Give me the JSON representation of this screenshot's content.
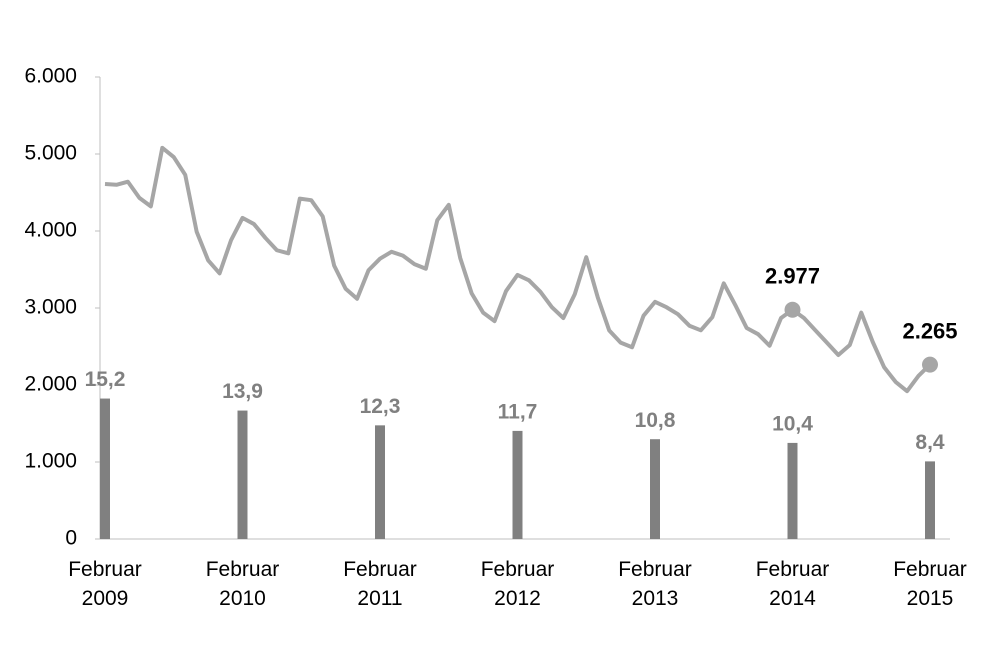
{
  "chart_data": {
    "type": "line",
    "categories": [
      "Februar 2009",
      null,
      null,
      null,
      null,
      null,
      null,
      null,
      null,
      null,
      null,
      null,
      "Februar 2010",
      null,
      null,
      null,
      null,
      null,
      null,
      null,
      null,
      null,
      null,
      null,
      "Februar 2011",
      null,
      null,
      null,
      null,
      null,
      null,
      null,
      null,
      null,
      null,
      null,
      "Februar 2012",
      null,
      null,
      null,
      null,
      null,
      null,
      null,
      null,
      null,
      null,
      null,
      "Februar 2013",
      null,
      null,
      null,
      null,
      null,
      null,
      null,
      null,
      null,
      null,
      null,
      "Februar 2014",
      null,
      null,
      null,
      null,
      null,
      null,
      null,
      null,
      null,
      null,
      null,
      "Februar 2015"
    ],
    "series": [
      {
        "type": "bar",
        "color": "#808080",
        "axis": "y2",
        "values": [
          15.2,
          null,
          null,
          null,
          null,
          null,
          null,
          null,
          null,
          null,
          null,
          null,
          13.9,
          null,
          null,
          null,
          null,
          null,
          null,
          null,
          null,
          null,
          null,
          null,
          12.3,
          null,
          null,
          null,
          null,
          null,
          null,
          null,
          null,
          null,
          null,
          null,
          11.7,
          null,
          null,
          null,
          null,
          null,
          null,
          null,
          null,
          null,
          null,
          null,
          10.8,
          null,
          null,
          null,
          null,
          null,
          null,
          null,
          null,
          null,
          null,
          null,
          10.4,
          null,
          null,
          null,
          null,
          null,
          null,
          null,
          null,
          null,
          null,
          null,
          8.4
        ],
        "value_labels": [
          "15,2",
          null,
          null,
          null,
          null,
          null,
          null,
          null,
          null,
          null,
          null,
          null,
          "13,9",
          null,
          null,
          null,
          null,
          null,
          null,
          null,
          null,
          null,
          null,
          null,
          "12,3",
          null,
          null,
          null,
          null,
          null,
          null,
          null,
          null,
          null,
          null,
          null,
          "11,7",
          null,
          null,
          null,
          null,
          null,
          null,
          null,
          null,
          null,
          null,
          null,
          "10,8",
          null,
          null,
          null,
          null,
          null,
          null,
          null,
          null,
          null,
          null,
          null,
          "10,4",
          null,
          null,
          null,
          null,
          null,
          null,
          null,
          null,
          null,
          null,
          null,
          "8,4"
        ]
      },
      {
        "type": "line",
        "color": "#a6a6a6",
        "values": [
          4610,
          4600,
          4640,
          4430,
          4320,
          5080,
          4960,
          4730,
          3990,
          3620,
          3450,
          3880,
          4170,
          4090,
          3910,
          3750,
          3710,
          4420,
          4400,
          4190,
          3550,
          3250,
          3120,
          3490,
          3640,
          3730,
          3680,
          3570,
          3510,
          4140,
          4340,
          3650,
          3190,
          2940,
          2830,
          3220,
          3430,
          3360,
          3210,
          3010,
          2870,
          3180,
          3660,
          3140,
          2710,
          2550,
          2490,
          2900,
          3080,
          3010,
          2920,
          2770,
          2710,
          2880,
          3320,
          3040,
          2740,
          2660,
          2510,
          2870,
          2977,
          2870,
          2710,
          2550,
          2390,
          2520,
          2940,
          2560,
          2230,
          2040,
          1920,
          2120,
          2265
        ],
        "value_labels": [
          null,
          null,
          null,
          null,
          null,
          null,
          null,
          null,
          null,
          null,
          null,
          null,
          null,
          null,
          null,
          null,
          null,
          null,
          null,
          null,
          null,
          null,
          null,
          null,
          null,
          null,
          null,
          null,
          null,
          null,
          null,
          null,
          null,
          null,
          null,
          null,
          null,
          null,
          null,
          null,
          null,
          null,
          null,
          null,
          null,
          null,
          null,
          null,
          null,
          null,
          null,
          null,
          null,
          null,
          null,
          null,
          null,
          null,
          null,
          null,
          "2.977",
          null,
          null,
          null,
          null,
          null,
          null,
          null,
          null,
          null,
          null,
          null,
          "2.265"
        ]
      }
    ],
    "ylim": [
      0,
      6000
    ],
    "yticks": [
      0,
      {
        "value": 1000,
        "label": "1.000"
      },
      {
        "value": 2000,
        "label": "2.000"
      },
      {
        "value": 3000,
        "label": "3.000"
      },
      {
        "value": 4000,
        "label": "4.000"
      },
      {
        "value": 5000,
        "label": "5.000"
      },
      {
        "value": 6000,
        "label": "6.000"
      }
    ],
    "y2lim": [
      0,
      50
    ]
  }
}
